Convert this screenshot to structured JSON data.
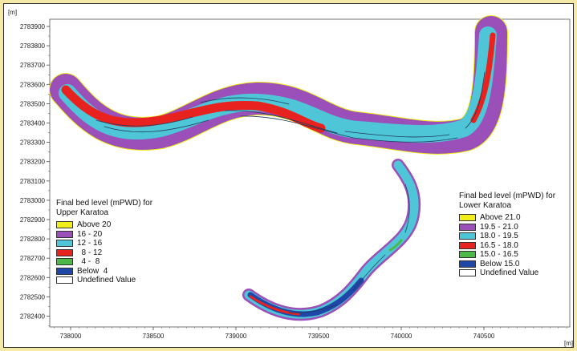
{
  "map": {
    "y_unit": "[m]",
    "x_unit": "[m]",
    "y_ticks": [
      "2783900",
      "2783800",
      "2783700",
      "2783600",
      "2783500",
      "2783400",
      "2783300",
      "2783200",
      "2783100",
      "2783000",
      "2782900",
      "2782800",
      "2782700",
      "2782600",
      "2782500",
      "2782400"
    ],
    "x_ticks": [
      "738000",
      "738500",
      "739000",
      "739500",
      "740000",
      "740500"
    ]
  },
  "legend_upper": {
    "title_line1": "Final bed level (mPWD) for",
    "title_line2": "Upper Karatoa",
    "items": [
      {
        "label": "Above 20",
        "color": "#f2ee1a"
      },
      {
        "label": "16 - 20",
        "color": "#9b4fb8"
      },
      {
        "label": "12 - 16",
        "color": "#4fc6d8"
      },
      {
        "label": "  8 - 12",
        "color": "#e8231f"
      },
      {
        "label": "  4 -  8",
        "color": "#4cb848"
      },
      {
        "label": "Below  4",
        "color": "#1f47a8"
      },
      {
        "label": "Undefined Value",
        "color": "#ffffff"
      }
    ]
  },
  "legend_lower": {
    "title_line1": "Final bed level (mPWD) for",
    "title_line2": "Lower Karatoa",
    "items": [
      {
        "label": "Above 21.0",
        "color": "#f2ee1a"
      },
      {
        "label": "19.5 - 21.0",
        "color": "#9b4fb8"
      },
      {
        "label": "18.0 - 19.5",
        "color": "#4fc6d8"
      },
      {
        "label": "16.5 - 18.0",
        "color": "#e8231f"
      },
      {
        "label": "15.0 - 16.5",
        "color": "#4cb848"
      },
      {
        "label": "Below 15.0",
        "color": "#1f47a8"
      },
      {
        "label": "Undefined Value",
        "color": "#ffffff"
      }
    ]
  }
}
